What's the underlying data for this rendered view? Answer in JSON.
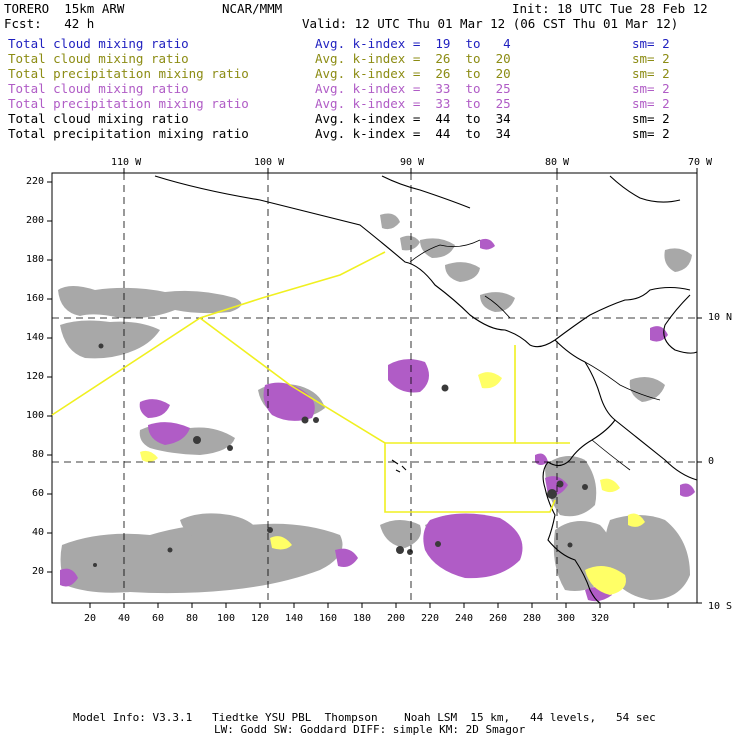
{
  "header": {
    "model": "TORERO  15km ARW",
    "org": "NCAR/MMM",
    "init": "Init: 18 UTC Tue 28 Feb 12",
    "fcst": "Fcst:   42 h",
    "valid": "Valid: 12 UTC Thu 01 Mar 12 (06 CST Thu 01 Mar 12)"
  },
  "legend": [
    {
      "field": "Total cloud mixing ratio",
      "index": "Avg. k-index =  19  to   4",
      "sm": "sm= 2",
      "color": "#1f1fbf"
    },
    {
      "field": "Total cloud mixing ratio",
      "index": "Avg. k-index =  26  to  20",
      "sm": "sm= 2",
      "color": "#8c8c14"
    },
    {
      "field": "Total precipitation mixing ratio",
      "index": "Avg. k-index =  26  to  20",
      "sm": "sm= 2",
      "color": "#8c8c14"
    },
    {
      "field": "Total cloud mixing ratio",
      "index": "Avg. k-index =  33  to  25",
      "sm": "sm= 2",
      "color": "#b05cc6"
    },
    {
      "field": "Total precipitation mixing ratio",
      "index": "Avg. k-index =  33  to  25",
      "sm": "sm= 2",
      "color": "#b05cc6"
    },
    {
      "field": "Total cloud mixing ratio",
      "index": "Avg. k-index =  44  to  34",
      "sm": "sm= 2",
      "color": "#000000"
    },
    {
      "field": "Total precipitation mixing ratio",
      "index": "Avg. k-index =  44  to  34",
      "sm": "sm= 2",
      "color": "#000000"
    }
  ],
  "axes": {
    "top": [
      "110 W",
      "100 W",
      "90 W",
      "80 W",
      "70 W"
    ],
    "right": [
      "10 N",
      "0",
      "10 S"
    ],
    "left": [
      "220",
      "200",
      "180",
      "160",
      "140",
      "120",
      "100",
      "80",
      "60",
      "40",
      "20"
    ],
    "bottom": [
      "20",
      "40",
      "60",
      "80",
      "100",
      "120",
      "140",
      "160",
      "180",
      "200",
      "220",
      "240",
      "260",
      "280",
      "300",
      "320"
    ]
  },
  "footer": {
    "line1": "Model Info: V3.3.1   Tiedtke YSU PBL  Thompson    Noah LSM  15 km,   44 levels,   54 sec",
    "line2": "LW: Godd SW: Goddard DIFF: simple KM: 2D Smagor"
  },
  "colors": {
    "gray": "#a8a8a8",
    "purple": "#b05cc6",
    "yellow": "#ffff66",
    "dark": "#3a3a3a",
    "track": "#f0f020"
  }
}
